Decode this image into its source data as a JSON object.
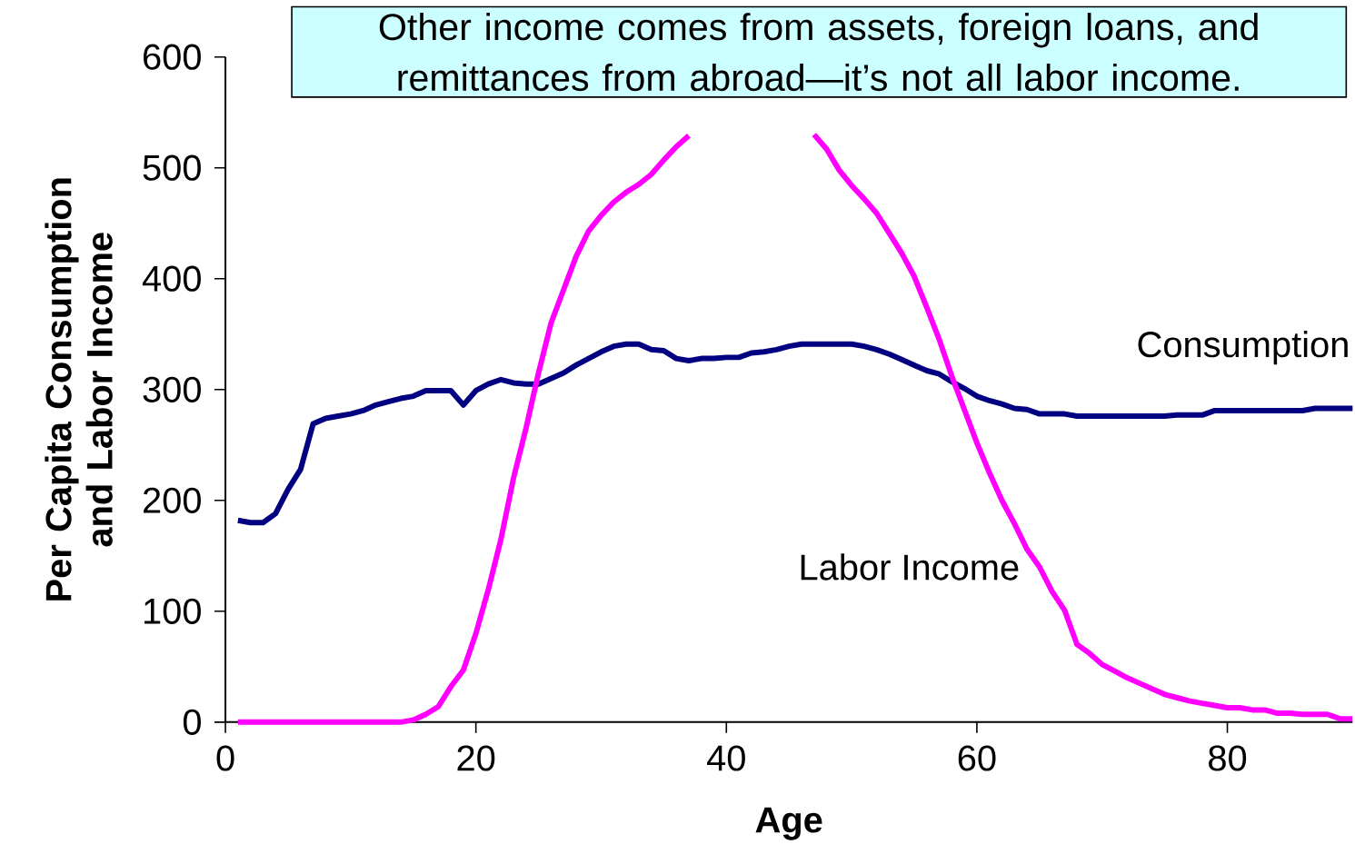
{
  "chart_data": {
    "type": "line",
    "xlabel": "Age",
    "ylabel": "Per Capita Consumption and Labor Income",
    "annotations": [
      "Other income comes from assets, foreign loans, and remittances from abroad—it’s not all labor income."
    ],
    "x": [
      1,
      2,
      3,
      4,
      5,
      6,
      7,
      8,
      9,
      10,
      11,
      12,
      13,
      14,
      15,
      16,
      17,
      18,
      19,
      20,
      21,
      22,
      23,
      24,
      25,
      26,
      27,
      28,
      29,
      30,
      31,
      32,
      33,
      34,
      35,
      36,
      37,
      38,
      39,
      40,
      41,
      42,
      43,
      44,
      45,
      46,
      47,
      48,
      49,
      50,
      51,
      52,
      53,
      54,
      55,
      56,
      57,
      58,
      59,
      60,
      61,
      62,
      63,
      64,
      65,
      66,
      67,
      68,
      69,
      70,
      71,
      72,
      73,
      74,
      75,
      76,
      77,
      78,
      79,
      80,
      81,
      82,
      83,
      84,
      85,
      86,
      87,
      88,
      89,
      90
    ],
    "xlim": [
      0,
      90
    ],
    "xticks": [
      0,
      20,
      40,
      60,
      80
    ],
    "ylim": [
      0,
      600
    ],
    "yticks": [
      0,
      100,
      200,
      300,
      400,
      500,
      600
    ],
    "legend": false,
    "grid": false,
    "line_style": "solid",
    "marker": "none",
    "series": [
      {
        "name": "Consumption",
        "color": "#000080",
        "values": [
          182,
          180,
          180,
          188,
          210,
          228,
          269,
          274,
          276,
          278,
          281,
          286,
          289,
          292,
          294,
          299,
          299,
          299,
          286,
          299,
          305,
          309,
          306,
          305,
          305,
          310,
          315,
          322,
          328,
          334,
          339,
          341,
          341,
          336,
          335,
          328,
          326,
          328,
          328,
          329,
          329,
          333,
          334,
          336,
          339,
          341,
          341,
          341,
          341,
          341,
          339,
          336,
          332,
          327,
          322,
          317,
          314,
          307,
          301,
          294,
          290,
          287,
          283,
          282,
          278,
          278,
          278,
          276,
          276,
          276,
          276,
          276,
          276,
          276,
          276,
          277,
          277,
          277,
          281,
          281,
          281,
          281,
          281,
          281,
          281,
          281,
          283,
          283,
          283,
          283
        ]
      },
      {
        "name": "Labor Income",
        "color": "#ff00ff",
        "values": [
          0,
          0,
          0,
          0,
          0,
          0,
          0,
          0,
          0,
          0,
          0,
          0,
          0,
          0,
          2,
          7,
          14,
          32,
          47,
          80,
          120,
          165,
          220,
          265,
          315,
          360,
          390,
          420,
          443,
          457,
          469,
          478,
          485,
          494,
          507,
          519,
          529,
          null,
          null,
          null,
          null,
          null,
          null,
          null,
          null,
          null,
          530,
          517,
          498,
          484,
          472,
          459,
          441,
          423,
          402,
          374,
          345,
          312,
          282,
          252,
          225,
          200,
          179,
          156,
          140,
          118,
          101,
          70,
          62,
          52,
          46,
          40,
          35,
          30,
          25,
          22,
          19,
          17,
          15,
          13,
          13,
          11,
          11,
          8,
          8,
          7,
          7,
          7,
          3,
          3
        ]
      }
    ]
  }
}
